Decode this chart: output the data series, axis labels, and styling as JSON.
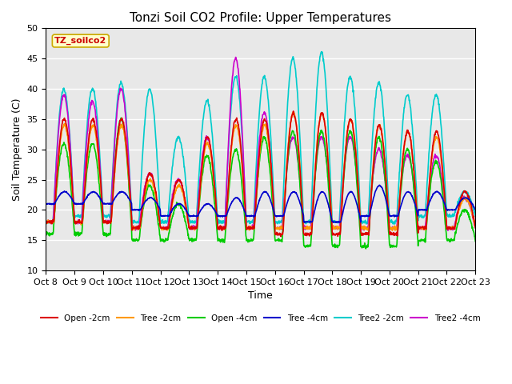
{
  "title": "Tonzi Soil CO2 Profile: Upper Temperatures",
  "xlabel": "Time",
  "ylabel": "Soil Temperature (C)",
  "ylim": [
    10,
    50
  ],
  "xlim": [
    0,
    15
  ],
  "x_tick_labels": [
    "Oct 8",
    "Oct 9",
    "Oct 10",
    "Oct 11",
    "Oct 12",
    "Oct 13",
    "Oct 14",
    "Oct 15",
    "Oct 16",
    "Oct 17",
    "Oct 18",
    "Oct 19",
    "Oct 20",
    "Oct 21",
    "Oct 22",
    "Oct 23"
  ],
  "x_ticks": [
    0,
    1,
    2,
    3,
    4,
    5,
    6,
    7,
    8,
    9,
    10,
    11,
    12,
    13,
    14,
    15
  ],
  "y_ticks": [
    10,
    15,
    20,
    25,
    30,
    35,
    40,
    45,
    50
  ],
  "watermark": "TZ_soilco2",
  "watermark_bg": "#ffffcc",
  "watermark_border": "#ccaa00",
  "plot_bg": "#e8e8e8",
  "series": {
    "Open -2cm": {
      "color": "#dd0000",
      "lw": 1.2
    },
    "Tree -2cm": {
      "color": "#ff9900",
      "lw": 1.2
    },
    "Open -4cm": {
      "color": "#00cc00",
      "lw": 1.2
    },
    "Tree -4cm": {
      "color": "#0000cc",
      "lw": 1.2
    },
    "Tree2 -2cm": {
      "color": "#00cccc",
      "lw": 1.2
    },
    "Tree2 -4cm": {
      "color": "#cc00cc",
      "lw": 1.2
    }
  },
  "title_fontsize": 11,
  "axis_label_fontsize": 9,
  "tick_fontsize": 8
}
